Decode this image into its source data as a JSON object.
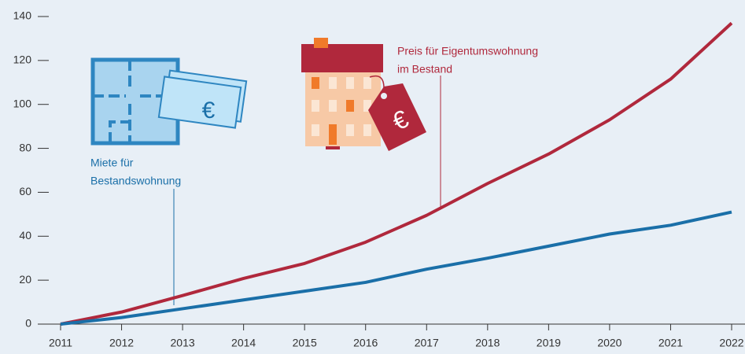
{
  "chart_data": {
    "type": "line",
    "x": [
      2011,
      2012,
      2013,
      2014,
      2015,
      2016,
      2017,
      2018,
      2019,
      2020,
      2021,
      2022
    ],
    "xlim": [
      2011,
      2022
    ],
    "xticks": [
      2011,
      2012,
      2013,
      2014,
      2015,
      2016,
      2017,
      2018,
      2019,
      2020,
      2021,
      2022
    ],
    "ylim": [
      0,
      140
    ],
    "yticks": [
      0,
      20,
      40,
      60,
      80,
      100,
      120,
      140
    ],
    "series": [
      {
        "name": "Preis für Eigentumswohnung im Bestand",
        "color": "#b0283c",
        "values": [
          0,
          5.5,
          13,
          20.8,
          27.6,
          37.3,
          49.5,
          64,
          77.4,
          93,
          111.5,
          137
        ]
      },
      {
        "name": "Miete für Bestandswohnung",
        "color": "#1a6fa8",
        "values": [
          0,
          3,
          7,
          11,
          15,
          19,
          25,
          30,
          35.5,
          41,
          45,
          51
        ]
      }
    ],
    "annotations": [
      {
        "lines": [
          "Miete für",
          "Bestandswohnung"
        ],
        "color": "#1a6fa8"
      },
      {
        "lines": [
          "Preis für Eigentumswohnung",
          "im Bestand"
        ],
        "color": "#b0283c"
      }
    ]
  }
}
